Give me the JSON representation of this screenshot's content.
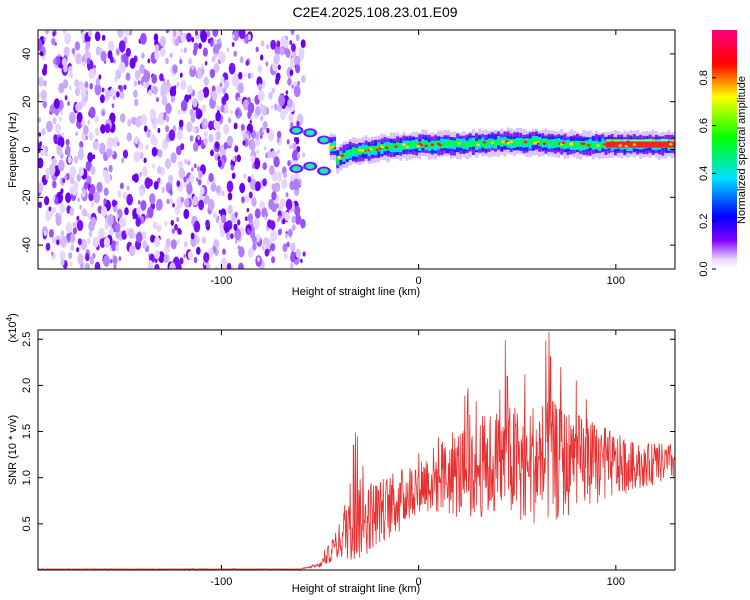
{
  "title": "C2E4.2025.108.23.01.E09",
  "chart_data": [
    {
      "type": "heatmap",
      "xlabel": "Height of straight line (km)",
      "ylabel": "Frequency (Hz)",
      "xlim": [
        -193,
        130
      ],
      "ylim": [
        -50,
        50
      ],
      "x_ticks": [
        -100,
        0,
        100
      ],
      "y_ticks": [
        -40,
        -20,
        0,
        20,
        40
      ],
      "noise_region_x": [
        -193,
        -60
      ],
      "signal_track": [
        {
          "x": -62,
          "y": 8
        },
        {
          "x": -62,
          "y": -8
        },
        {
          "x": -55,
          "y": 7
        },
        {
          "x": -55,
          "y": -7
        },
        {
          "x": -48,
          "y": 4
        },
        {
          "x": -48,
          "y": -9
        },
        {
          "x": -42,
          "y": 1
        },
        {
          "x": -42,
          "y": -4
        },
        {
          "x": -35,
          "y": -1
        },
        {
          "x": -25,
          "y": 0
        },
        {
          "x": -15,
          "y": 1
        },
        {
          "x": 0,
          "y": 2
        },
        {
          "x": 20,
          "y": 2
        },
        {
          "x": 40,
          "y": 3
        },
        {
          "x": 60,
          "y": 3
        },
        {
          "x": 80,
          "y": 2
        },
        {
          "x": 100,
          "y": 2
        },
        {
          "x": 130,
          "y": 2
        }
      ],
      "colorbar": {
        "label": "Normalized spectral amplitude",
        "ticks": [
          "0.0",
          "0.2",
          "0.4",
          "0.6",
          "0.8"
        ],
        "range": [
          0,
          1
        ]
      }
    },
    {
      "type": "line",
      "xlabel": "Height of straight line (km)",
      "ylabel": "SNR (10 * v/v)",
      "multiplier": "(x10",
      "multiplier_exp": "4",
      "multiplier_close": ")",
      "xlim": [
        -193,
        130
      ],
      "ylim": [
        0,
        2.6
      ],
      "x_ticks": [
        -100,
        0,
        100
      ],
      "y_ticks": [
        0.5,
        1.0,
        1.5,
        2.0,
        2.5
      ],
      "color": "#e83030",
      "envelope": [
        {
          "x": -193,
          "base": 0.01,
          "amp": 0.005
        },
        {
          "x": -60,
          "base": 0.01,
          "amp": 0.005
        },
        {
          "x": -50,
          "base": 0.05,
          "amp": 0.05
        },
        {
          "x": -40,
          "base": 0.3,
          "amp": 0.4
        },
        {
          "x": -35,
          "base": 0.5,
          "amp": 0.9
        },
        {
          "x": -30,
          "base": 0.5,
          "amp": 0.9
        },
        {
          "x": -20,
          "base": 0.6,
          "amp": 0.7
        },
        {
          "x": -10,
          "base": 0.7,
          "amp": 0.7
        },
        {
          "x": 0,
          "base": 0.9,
          "amp": 0.6
        },
        {
          "x": 20,
          "base": 1.0,
          "amp": 1.0
        },
        {
          "x": 40,
          "base": 1.1,
          "amp": 1.2
        },
        {
          "x": 65,
          "base": 1.1,
          "amp": 1.4
        },
        {
          "x": 90,
          "base": 1.1,
          "amp": 0.9
        },
        {
          "x": 110,
          "base": 1.1,
          "amp": 0.5
        },
        {
          "x": 130,
          "base": 1.15,
          "amp": 0.4
        }
      ],
      "peaks": [
        {
          "x": -32,
          "y": 1.49
        },
        {
          "x": -31,
          "y": 1.45
        },
        {
          "x": -33,
          "y": 1.35
        },
        {
          "x": 25,
          "y": 1.97
        },
        {
          "x": 26,
          "y": 1.68
        },
        {
          "x": 44,
          "y": 2.49
        },
        {
          "x": 45,
          "y": 2.1
        },
        {
          "x": 66,
          "y": 2.58
        },
        {
          "x": 67,
          "y": 2.3
        },
        {
          "x": 72,
          "y": 2.2
        },
        {
          "x": 80,
          "y": 2.05
        },
        {
          "x": 85,
          "y": 1.85
        }
      ]
    }
  ]
}
